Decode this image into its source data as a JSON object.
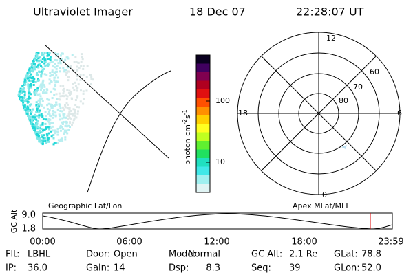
{
  "header": {
    "instrument": "Ultraviolet Imager",
    "date": "18 Dec 07",
    "time": "22:28:07 UT"
  },
  "colorbar": {
    "unit": "photon cm",
    "exp1": "-2",
    "s": "s",
    "exp2": "-1",
    "ticks": [
      "100",
      "10"
    ]
  },
  "polar": {
    "labels": {
      "top": "12",
      "right": "6",
      "left": "18",
      "bottom": "0"
    },
    "rings": [
      "60",
      "70",
      "80"
    ]
  },
  "orbit": {
    "left_title": "Geographic Lat/Lon",
    "right_title": "Apex MLat/MLT",
    "axis_label": "GC Alt",
    "yticks": [
      "9.0",
      "1.8"
    ],
    "xticks": [
      "00:00",
      "06:00",
      "12:00",
      "18:00",
      "23:59"
    ]
  },
  "footer": {
    "rows": [
      [
        [
          "Flt:",
          "LBHL"
        ],
        [
          "Door:",
          "Open"
        ],
        [
          "Mode:",
          "Normal"
        ],
        [
          "GC Alt:",
          "2.1 Re"
        ],
        [
          "GLat:",
          "78.8"
        ]
      ],
      [
        [
          "IP:",
          "36.0"
        ],
        [
          "Gain:",
          "14"
        ],
        [
          "Dsp:",
          "8.3"
        ],
        [
          "Seq:",
          "39"
        ],
        [
          "GLon:",
          "52.0"
        ]
      ]
    ]
  }
}
